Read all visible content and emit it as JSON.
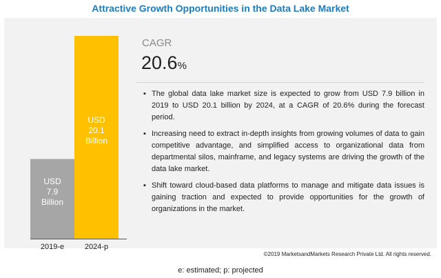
{
  "title": "Attractive Growth Opportunities in the Data Lake Market",
  "cagr": {
    "label": "CAGR",
    "value": "20.6",
    "unit": "%"
  },
  "bullets": [
    "The global data lake market size is expected to grow from USD 7.9 billion in 2019 to USD 20.1 billion by 2024, at a CAGR of 20.6% during the forecast period.",
    "Increasing need to extract in-depth insights from growing volumes of data to gain competitive advantage, and simplified access to organizational data from departmental silos, mainframe, and legacy systems are driving the growth of the data lake market.",
    "Shift toward cloud-based data platforms to manage and mitigate data issues is gaining traction and expected to provide opportunities for the growth of organizations in the market."
  ],
  "bullet_glyph": "▪",
  "copyright": "©2019 MarketsandMarkets Research Private Ltd. All rights reserved.",
  "footnote": "e: estimated; p: projected",
  "colors": {
    "title": "#1a7dc0",
    "bar_2019": "#a6a6a6",
    "bar_2024": "#ffc000",
    "panel": "#f2f2f2"
  },
  "chart_data": {
    "type": "bar",
    "categories": [
      "2019-e",
      "2024-p"
    ],
    "values": [
      7.9,
      20.1
    ],
    "unit": "USD Billion",
    "bar_labels": [
      [
        "USD",
        "7.9",
        "Billion"
      ],
      [
        "USD",
        "20.1",
        "Billion"
      ]
    ],
    "colors": [
      "#a6a6a6",
      "#ffc000"
    ],
    "ylim": [
      0,
      20.1
    ],
    "grid": false
  }
}
